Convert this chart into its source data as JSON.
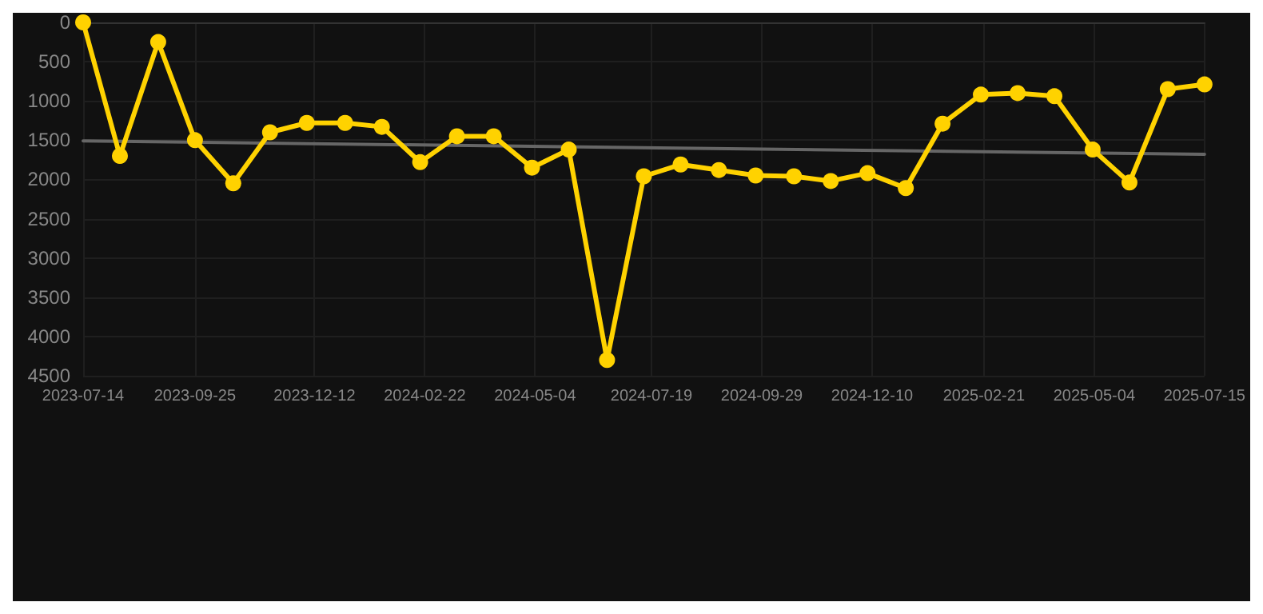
{
  "chart_data": {
    "type": "line",
    "x": [
      "2023-07-14",
      "2023-08-07",
      "2023-09-01",
      "2023-09-25",
      "2023-10-20",
      "2023-11-13",
      "2023-12-07",
      "2024-01-01",
      "2024-01-25",
      "2024-02-19",
      "2024-03-14",
      "2024-04-07",
      "2024-05-02",
      "2024-05-26",
      "2024-06-20",
      "2024-07-14",
      "2024-08-07",
      "2024-09-01",
      "2024-09-25",
      "2024-10-20",
      "2024-11-13",
      "2024-12-07",
      "2025-01-01",
      "2025-01-25",
      "2025-02-19",
      "2025-03-15",
      "2025-04-08",
      "2025-05-03",
      "2025-05-27",
      "2025-06-21",
      "2025-07-15"
    ],
    "series": [
      {
        "color": "#ffd200",
        "marker": "circle",
        "values": [
          0,
          1700,
          250,
          1500,
          2050,
          1400,
          1280,
          1280,
          1330,
          1780,
          1450,
          1450,
          1850,
          1620,
          4300,
          1960,
          1810,
          1880,
          1950,
          1960,
          2020,
          1920,
          2110,
          1290,
          920,
          900,
          940,
          1620,
          2040,
          850,
          790
        ]
      },
      {
        "type": "line",
        "color": "#666666",
        "marker": "none",
        "x": [
          "2023-07-14",
          "2025-07-15"
        ],
        "values": [
          1510,
          1680
        ]
      }
    ],
    "xlim": [
      "2023-07-14",
      "2025-07-15"
    ],
    "xticks": [
      "2023-07-14",
      "2023-09-25",
      "2023-12-12",
      "2024-02-22",
      "2024-05-04",
      "2024-07-19",
      "2024-09-29",
      "2024-12-10",
      "2025-02-21",
      "2025-05-04",
      "2025-07-15"
    ],
    "ylim": [
      4500,
      0
    ],
    "yticks": [
      0,
      500,
      1000,
      1500,
      2000,
      2500,
      3000,
      3500,
      4000,
      4500
    ],
    "grid": true,
    "line_style": "solid"
  }
}
